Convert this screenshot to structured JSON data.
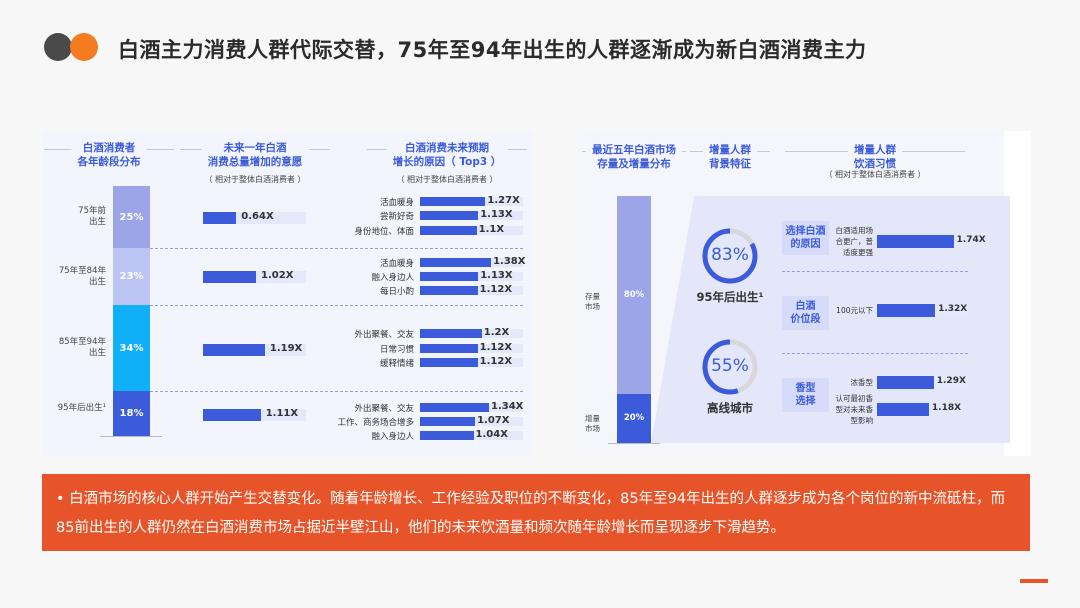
{
  "title": "白酒主力消费人群代际交替，75年至94年出生的人群逐渐成为新白酒消费主力",
  "left": {
    "h1": [
      "白酒消费者",
      "各年龄段分布"
    ],
    "h2": [
      "未来一年白酒",
      "消费总量增加的意愿"
    ],
    "h2_sub": "（ 相对于整体白酒消费者 ）",
    "h3": [
      "白酒消费未来预期",
      "增长的原因（ Top3 ）"
    ],
    "h3_sub": "（ 相对于整体白酒消费者 ）",
    "groups": [
      {
        "label": "75年前\n出生",
        "share": "25%",
        "share_value": 25,
        "color": "#9ba5e8",
        "intent": 0.64,
        "intent_label": "0.64X",
        "reasons": [
          {
            "name": "活血暖身",
            "v": 1.27,
            "label": "1.27X"
          },
          {
            "name": "尝新好奇",
            "v": 1.13,
            "label": "1.13X"
          },
          {
            "name": "身份地位、体面",
            "v": 1.1,
            "label": "1.1X"
          }
        ]
      },
      {
        "label": "75年至84年\n出生",
        "share": "23%",
        "share_value": 23,
        "color": "#bcc4f4",
        "intent": 1.02,
        "intent_label": "1.02X",
        "reasons": [
          {
            "name": "活血暖身",
            "v": 1.38,
            "label": "1.38X"
          },
          {
            "name": "融入身边人",
            "v": 1.13,
            "label": "1.13X"
          },
          {
            "name": "每日小酌",
            "v": 1.12,
            "label": "1.12X"
          }
        ]
      },
      {
        "label": "85年至94年\n出生",
        "share": "34%",
        "share_value": 34,
        "color": "#10b0f8",
        "intent": 1.19,
        "intent_label": "1.19X",
        "reasons": [
          {
            "name": "外出聚餐、交友",
            "v": 1.2,
            "label": "1.2X"
          },
          {
            "name": "日常习惯",
            "v": 1.12,
            "label": "1.12X"
          },
          {
            "name": "缓释情绪",
            "v": 1.12,
            "label": "1.12X"
          }
        ]
      },
      {
        "label": "95年后出生¹",
        "share": "18%",
        "share_value": 18,
        "color": "#3b5bdb",
        "intent": 1.11,
        "intent_label": "1.11X",
        "reasons": [
          {
            "name": "外出聚餐、交友",
            "v": 1.34,
            "label": "1.34X"
          },
          {
            "name": "工作、商务场合增多",
            "v": 1.07,
            "label": "1.07X"
          },
          {
            "name": "融入身边人",
            "v": 1.04,
            "label": "1.04X"
          }
        ]
      }
    ]
  },
  "right": {
    "h1": [
      "最近五年白酒市场",
      "存量及增量分布"
    ],
    "h2": [
      "增量人群",
      "背景特征"
    ],
    "h3": [
      "增量人群",
      "饮酒习惯"
    ],
    "h3_sub": "（ 相对于整体白酒消费者 ）",
    "stock": {
      "label": "存量\n市场",
      "value": "80%",
      "pct": 80
    },
    "incr": {
      "label": "增量\n市场",
      "value": "20%",
      "pct": 20
    },
    "donuts": [
      {
        "value": "83%",
        "pct": 83,
        "caption": "95年后出生¹"
      },
      {
        "value": "55%",
        "pct": 55,
        "caption": "高线城市"
      }
    ],
    "cats": [
      {
        "name": "选择白酒\n的原因",
        "items": [
          {
            "name": "白酒适用场\n合更广，普\n适度更强",
            "v": 1.74,
            "label": "1.74X"
          }
        ]
      },
      {
        "name": "白酒\n价位段",
        "items": [
          {
            "name": "100元以下",
            "v": 1.32,
            "label": "1.32X"
          }
        ]
      },
      {
        "name": "香型\n选择",
        "items": [
          {
            "name": "浓香型",
            "v": 1.29,
            "label": "1.29X"
          },
          {
            "name": "认可最初香\n型对未来香\n型影响",
            "v": 1.18,
            "label": "1.18X"
          }
        ]
      }
    ]
  },
  "banner": "•  白酒市场的核心人群开始产生交替变化。随着年龄增长、工作经验及职位的不断变化，85年至94年出生的人群逐步成为各个岗位的新中流砥柱，而85前出生的人群仍然在白酒消费市场占据近半壁江山，他们的未来饮酒量和频次随年龄增长而呈现逐步下滑趋势。",
  "colors": {
    "accent": "#3b5bdb",
    "orange": "#e8542a"
  }
}
